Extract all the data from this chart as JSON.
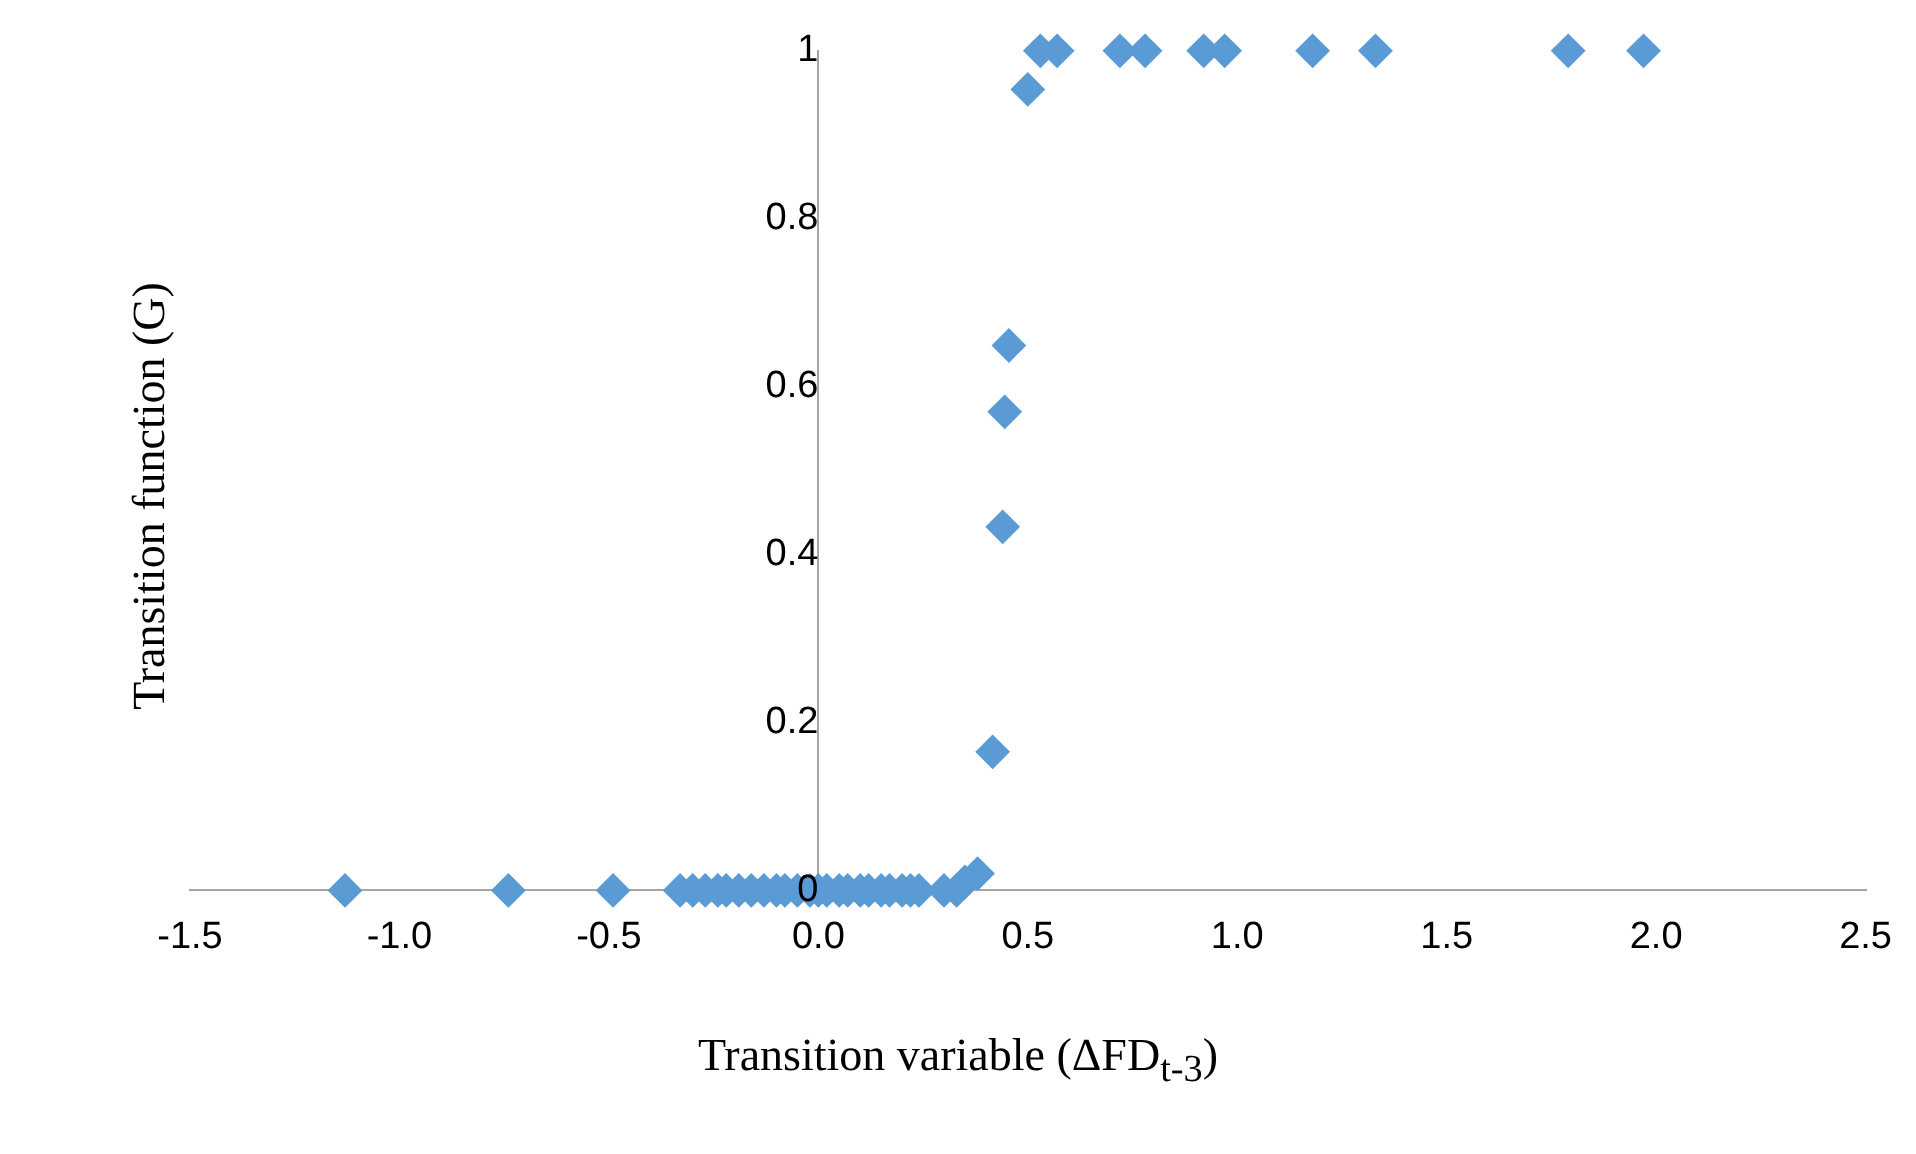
{
  "chart_data": {
    "type": "scatter",
    "xlabel": "Transition variable (ΔFD$_{t-3}$)",
    "ylabel": "Transition function (G)",
    "xlim": [
      -1.5,
      2.5
    ],
    "ylim": [
      0,
      1
    ],
    "xticks": [
      {
        "value": -1.5,
        "label": "-1.5"
      },
      {
        "value": -1,
        "label": "-1.0"
      },
      {
        "value": -0.5,
        "label": "-0.5"
      },
      {
        "value": 0,
        "label": "0.0"
      },
      {
        "value": 0.5,
        "label": "0.5"
      },
      {
        "value": 1,
        "label": "1.0"
      },
      {
        "value": 1.5,
        "label": "1.5"
      },
      {
        "value": 2,
        "label": "2.0"
      },
      {
        "value": 2.5,
        "label": "2.5"
      }
    ],
    "yticks": [
      0,
      0.2,
      0.4,
      0.6,
      0.8,
      1
    ],
    "grid": false,
    "legend": false,
    "marker": "diamond",
    "series": [
      {
        "color": "#5b9bd5",
        "x": [
          -1.13,
          -0.74,
          -0.49,
          -0.33,
          -0.3,
          -0.27,
          -0.24,
          -0.22,
          -0.19,
          -0.16,
          -0.13,
          -0.1,
          -0.08,
          -0.05,
          -0.02,
          0.0,
          0.02,
          0.05,
          0.07,
          0.1,
          0.12,
          0.15,
          0.17,
          0.2,
          0.22,
          0.24,
          0.3,
          0.33,
          0.35,
          0.38,
          0.416,
          0.44,
          0.445,
          0.455,
          0.5,
          0.53,
          0.57,
          0.72,
          0.78,
          0.92,
          0.97,
          1.18,
          1.33,
          1.79,
          1.97
        ],
        "values": [
          0,
          0,
          0,
          0,
          0,
          0,
          0,
          0,
          0,
          0,
          0,
          0,
          0,
          0,
          0,
          0,
          0,
          0,
          0,
          0,
          0,
          0,
          0,
          0,
          0,
          0,
          0,
          0,
          0.01,
          0.02,
          0.165,
          0.433,
          0.57,
          0.649,
          0.954,
          1,
          1,
          1,
          1,
          1,
          1,
          1,
          1,
          1,
          1
        ]
      }
    ]
  }
}
